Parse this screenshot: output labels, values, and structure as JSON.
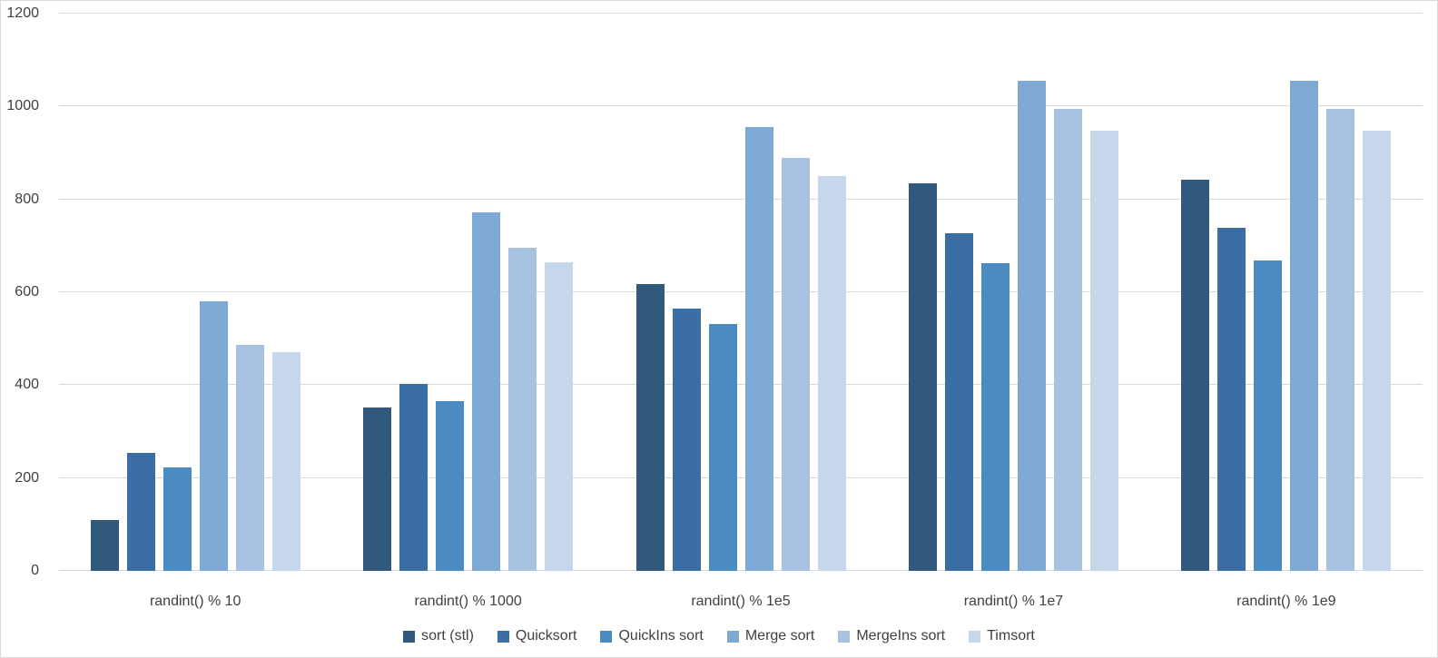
{
  "chart_data": {
    "type": "bar",
    "title": "",
    "xlabel": "",
    "ylabel": "",
    "ylim": [
      0,
      1200
    ],
    "yticks": [
      0,
      200,
      400,
      600,
      800,
      1000,
      1200
    ],
    "grid": true,
    "legend_position": "bottom",
    "categories": [
      "randint() % 10",
      "randint() % 1000",
      "randint() % 1e5",
      "randint() % 1e7",
      "randint() % 1e9"
    ],
    "series": [
      {
        "name": "sort (stl)",
        "color": "#31597E",
        "values": [
          110,
          352,
          618,
          835,
          843
        ]
      },
      {
        "name": "Quicksort",
        "color": "#3B6EA5",
        "values": [
          255,
          402,
          565,
          727,
          738
        ]
      },
      {
        "name": "QuickIns sort",
        "color": "#4A8BC2",
        "values": [
          222,
          366,
          532,
          662,
          668
        ]
      },
      {
        "name": "Merge sort",
        "color": "#7EA9D4",
        "values": [
          580,
          772,
          955,
          1055,
          1055
        ]
      },
      {
        "name": "MergeIns sort",
        "color": "#A8C2E2",
        "values": [
          487,
          695,
          890,
          995,
          995
        ]
      },
      {
        "name": "Timsort",
        "color": "#C6D7EC",
        "values": [
          472,
          665,
          850,
          948,
          948
        ]
      }
    ]
  }
}
